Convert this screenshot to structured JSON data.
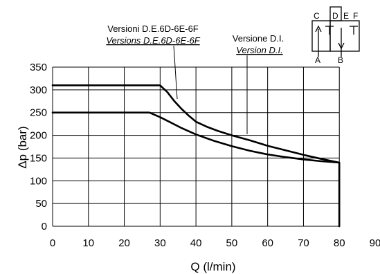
{
  "chart_data": {
    "type": "line",
    "xlabel": "Q (l/min)",
    "ylabel": "Δp (bar)",
    "xlim": [
      0,
      90
    ],
    "ylim": [
      0,
      350
    ],
    "x_ticks": [
      "0",
      "10",
      "20",
      "30",
      "40",
      "50",
      "60",
      "70",
      "80",
      "90"
    ],
    "y_ticks": [
      "0",
      "50",
      "100",
      "150",
      "200",
      "250",
      "300",
      "350"
    ],
    "grid": true,
    "series": [
      {
        "name": "Versioni D.E.6D-6E-6F / Versions D.E.6D-6E-6F",
        "x": [
          0,
          30,
          32,
          34,
          36,
          38,
          40,
          43,
          46,
          50,
          55,
          60,
          65,
          70,
          75,
          80,
          80
        ],
        "y": [
          310,
          310,
          295,
          275,
          258,
          243,
          230,
          219,
          210,
          200,
          189,
          177,
          167,
          157,
          148,
          140,
          0
        ]
      },
      {
        "name": "Versione D.I. / Version D.I.",
        "x": [
          0,
          27,
          30,
          33,
          36,
          40,
          45,
          50,
          55,
          60,
          65,
          70,
          75,
          80
        ],
        "y": [
          250,
          250,
          240,
          228,
          216,
          202,
          188,
          176,
          166,
          158,
          152,
          147,
          143,
          140
        ]
      }
    ],
    "annotations": [
      {
        "line1": "Versioni D.E.6D-6E-6F",
        "line2": "Versions D.E.6D-6E-6F",
        "points_to_series": 0
      },
      {
        "line1": "Versione D.I.",
        "line2": "Version D.I.",
        "points_to_series": 1
      }
    ],
    "symbol_labels": {
      "top": [
        "C",
        "D",
        "E",
        "F"
      ],
      "bottom": [
        "A",
        "B"
      ]
    }
  }
}
